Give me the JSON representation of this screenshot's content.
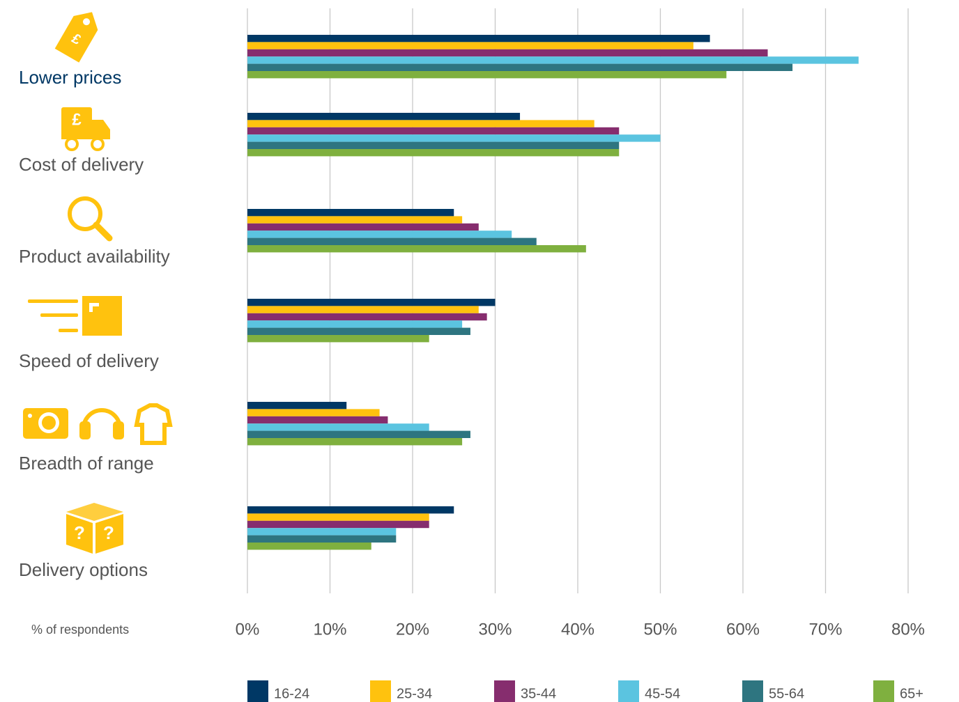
{
  "chart_data": {
    "type": "bar",
    "orientation": "horizontal",
    "categories": [
      "Lower prices",
      "Cost of delivery",
      "Product availability",
      "Speed of delivery",
      "Breadth of range",
      "Delivery options"
    ],
    "xlabel": "% of respondents",
    "series": [
      {
        "name": "16-24",
        "color": "#003865",
        "values": [
          56,
          33,
          25,
          30,
          12,
          25
        ]
      },
      {
        "name": "25-34",
        "color": "#ffc20e",
        "values": [
          54,
          42,
          26,
          28,
          16,
          22
        ]
      },
      {
        "name": "35-44",
        "color": "#862d6e",
        "values": [
          63,
          45,
          28,
          29,
          17,
          22
        ]
      },
      {
        "name": "45-54",
        "color": "#5bc4e0",
        "values": [
          74,
          50,
          32,
          26,
          22,
          18
        ]
      },
      {
        "name": "55-64",
        "color": "#2e7580",
        "values": [
          66,
          45,
          35,
          27,
          27,
          18
        ]
      },
      {
        "name": "65+",
        "color": "#7fb03f",
        "values": [
          58,
          45,
          41,
          22,
          26,
          15
        ]
      }
    ],
    "xlim": [
      0,
      80
    ],
    "xticks": [
      {
        "value": 0,
        "label": "0%"
      },
      {
        "value": 10,
        "label": "10%"
      },
      {
        "value": 20,
        "label": "20%"
      },
      {
        "value": 30,
        "label": "30%"
      },
      {
        "value": 40,
        "label": "40%"
      },
      {
        "value": 50,
        "label": "50%"
      },
      {
        "value": 60,
        "label": "60%"
      },
      {
        "value": 70,
        "label": "70%"
      },
      {
        "value": 80,
        "label": "80%"
      }
    ],
    "grid": true
  }
}
